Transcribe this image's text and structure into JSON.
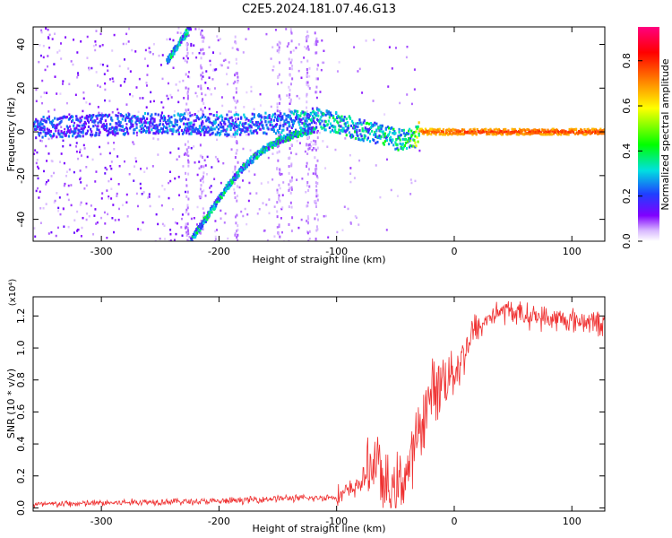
{
  "title": "C2E5.2024.181.07.46.G13",
  "chart_data": [
    {
      "type": "heatmap",
      "xlabel": "Height of straight line (km)",
      "ylabel": "Frequency (Hz)",
      "xlim": [
        -358,
        128
      ],
      "ylim": [
        -50,
        48
      ],
      "xticks": [
        -300,
        -200,
        -100,
        0,
        100
      ],
      "yticks": [
        -40,
        -20,
        0,
        20,
        40
      ],
      "colorbar": {
        "label": "Normalized spectral amplitude",
        "range": [
          0,
          0.95
        ],
        "ticks": [
          0.0,
          0.2,
          0.4,
          0.6,
          0.8
        ],
        "colormap": [
          "#ffffff",
          "#d8b8ff",
          "#8000ff",
          "#1f3fff",
          "#00e0e0",
          "#00ff00",
          "#ffff00",
          "#ff8000",
          "#ff0000",
          "#ff0080"
        ]
      },
      "features": {
        "main_ridge": {
          "x": [
            -358,
            -300,
            -250,
            -200,
            -150,
            -120,
            -100,
            -80,
            -60,
            -45,
            -35,
            -30,
            0,
            128
          ],
          "y": [
            2,
            3,
            4,
            3,
            4,
            6,
            4,
            1,
            -2,
            -4,
            -3,
            0,
            0,
            0
          ],
          "amplitude": [
            0.3,
            0.3,
            0.35,
            0.35,
            0.35,
            0.45,
            0.45,
            0.45,
            0.5,
            0.5,
            0.6,
            0.85,
            0.9,
            0.9
          ]
        },
        "upper_arc": {
          "x": [
            -245,
            -238,
            -230,
            -225
          ],
          "y": [
            32,
            38,
            44,
            48
          ],
          "amplitude": 0.45
        },
        "lower_arc": {
          "x": [
            -225,
            -210,
            -195,
            -180,
            -165,
            -150,
            -135,
            -120
          ],
          "y": [
            -50,
            -38,
            -26,
            -16,
            -9,
            -4,
            -1,
            1
          ],
          "amplitude": 0.45
        }
      }
    },
    {
      "type": "line",
      "xlabel": "Height of straight line (km)",
      "ylabel": "SNR (10 * v/v)",
      "yscale_label": "(x10⁴)",
      "xlim": [
        -358,
        128
      ],
      "ylim": [
        -0.02,
        1.32
      ],
      "xticks": [
        -300,
        -200,
        -100,
        0,
        100
      ],
      "yticks": [
        0.0,
        0.2,
        0.4,
        0.6,
        0.8,
        1.0,
        1.2
      ],
      "series": [
        {
          "color": "#ef3030",
          "x": [
            -358,
            -300,
            -250,
            -200,
            -150,
            -120,
            -100,
            -85,
            -75,
            -70,
            -65,
            -62,
            -58,
            -55,
            -50,
            -45,
            -40,
            -35,
            -30,
            -25,
            -20,
            -15,
            -10,
            -5,
            0,
            5,
            10,
            15,
            20,
            25,
            30,
            40,
            50,
            60,
            70,
            80,
            90,
            100,
            110,
            120,
            128
          ],
          "y": [
            0.02,
            0.03,
            0.04,
            0.04,
            0.06,
            0.06,
            0.07,
            0.12,
            0.2,
            0.28,
            0.32,
            0.15,
            0.12,
            0.1,
            0.12,
            0.18,
            0.22,
            0.32,
            0.48,
            0.6,
            0.7,
            0.76,
            0.8,
            0.84,
            0.86,
            0.9,
            1.0,
            1.08,
            1.12,
            1.15,
            1.2,
            1.23,
            1.23,
            1.2,
            1.2,
            1.18,
            1.18,
            1.17,
            1.17,
            1.16,
            1.15
          ]
        }
      ]
    }
  ]
}
